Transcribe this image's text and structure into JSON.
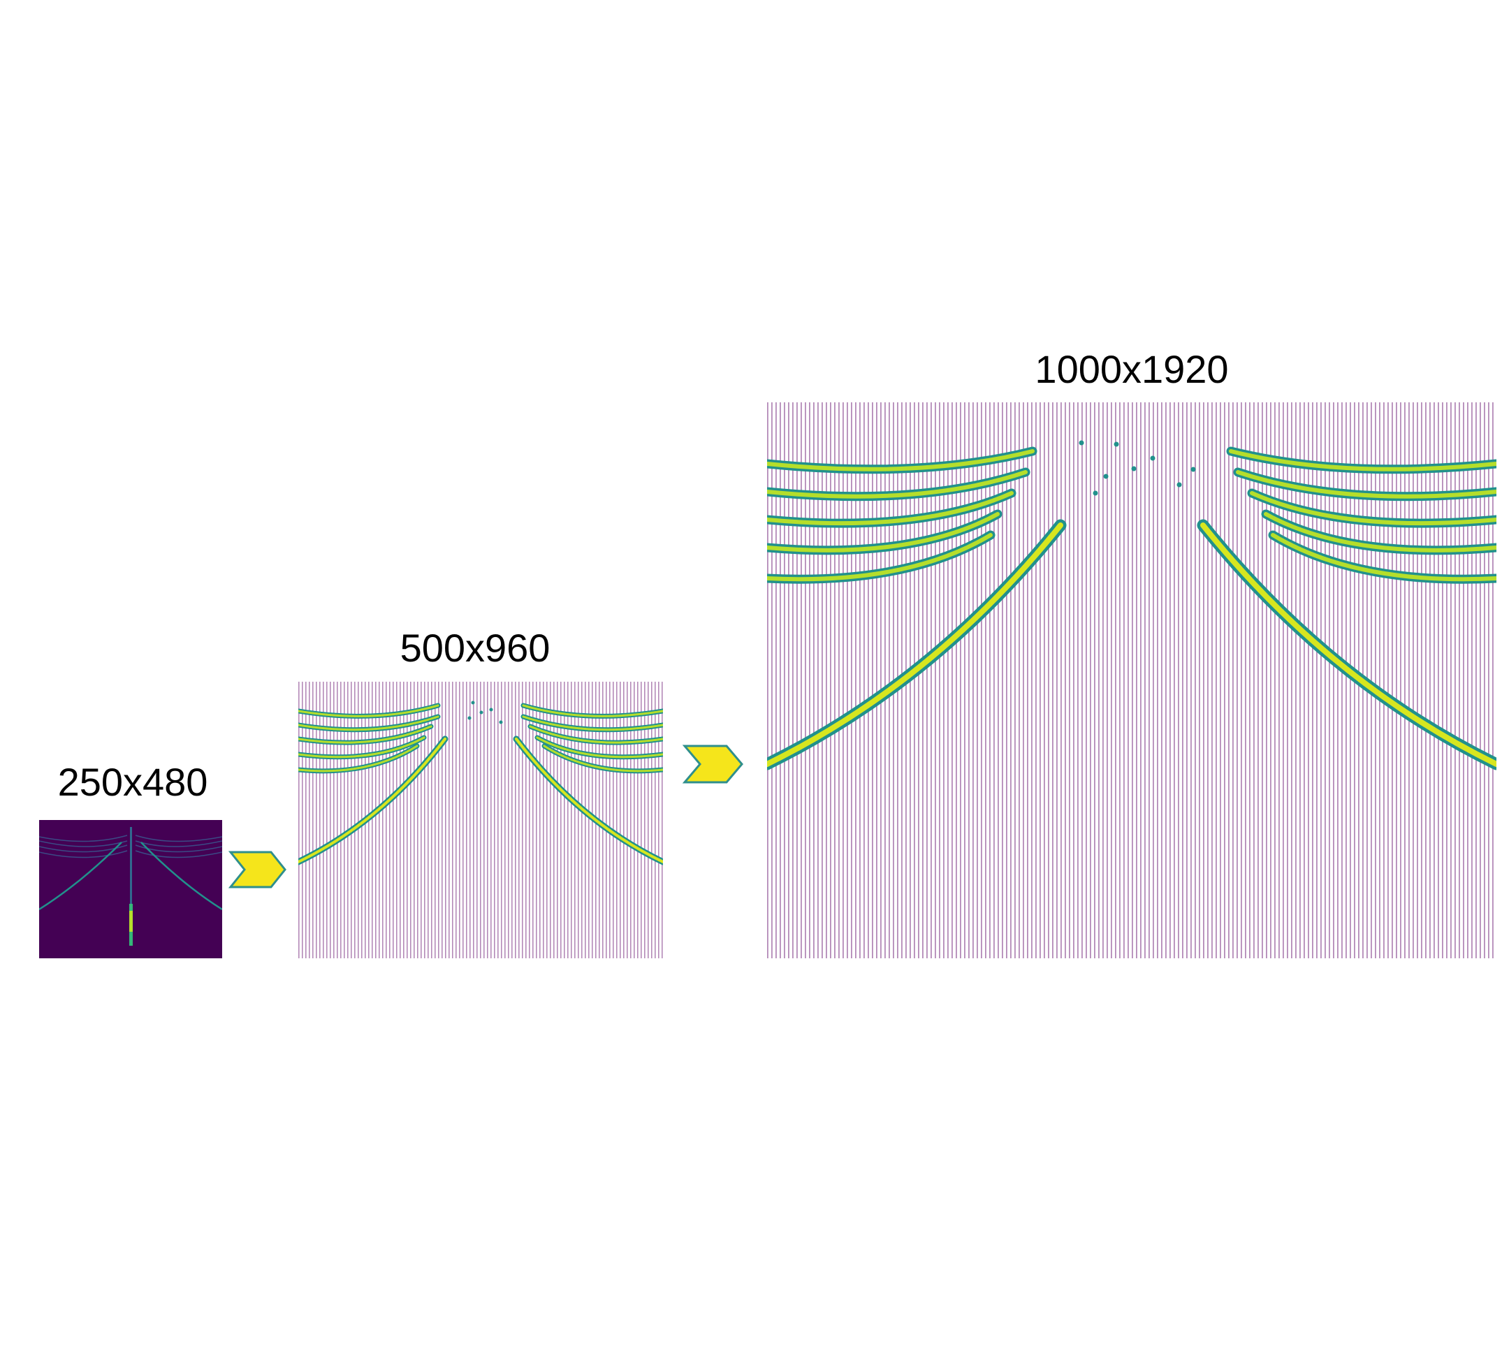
{
  "stages": [
    {
      "label": "250x480"
    },
    {
      "label": "500x960"
    },
    {
      "label": "1000x1920"
    }
  ],
  "colors": {
    "viridis_dark": "#440154",
    "viridis_teal": "#21918c",
    "viridis_green": "#5ec962",
    "viridis_yellow": "#d7e61f",
    "stripe_purple": "#b48ab8",
    "arrow_fill": "#f5e51b",
    "arrow_stroke": "#2f8f8c"
  },
  "icons": [
    "chevron-right-icon",
    "chevron-right-icon"
  ]
}
